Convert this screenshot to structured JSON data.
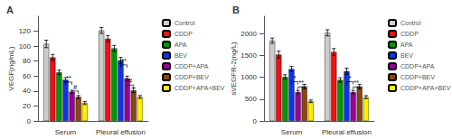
{
  "chart_data": [
    {
      "type": "bar",
      "title": "A",
      "ylabel": "VEGF(ng/mL)",
      "categories": [
        "Serum",
        "Pleural effusion"
      ],
      "series": [
        {
          "name": "Control",
          "color": "#cccccc",
          "values": [
            103,
            121
          ],
          "errors": [
            5,
            4
          ]
        },
        {
          "name": "CDDP",
          "color": "#ee1111",
          "values": [
            85,
            110
          ],
          "errors": [
            4,
            4
          ]
        },
        {
          "name": "APA",
          "color": "#009900",
          "values": [
            65,
            97
          ],
          "errors": [
            3,
            4
          ]
        },
        {
          "name": "BEV",
          "color": "#1133ee",
          "values": [
            55,
            81
          ],
          "errors": [
            3,
            4
          ]
        },
        {
          "name": "CDDP+APA",
          "color": "#990099",
          "values": [
            39,
            57
          ],
          "errors": [
            2,
            3
          ]
        },
        {
          "name": "CDDP+BEV",
          "color": "#8B4513",
          "values": [
            32,
            41
          ],
          "errors": [
            2,
            3
          ]
        },
        {
          "name": "CDDP+APA+BEV",
          "color": "#ffee00",
          "values": [
            24,
            32
          ],
          "errors": [
            2,
            2
          ]
        }
      ],
      "ylim": [
        0,
        140
      ],
      "yticks": [
        0,
        20,
        40,
        60,
        80,
        100,
        120
      ],
      "grid": false,
      "legend": "right",
      "annotations": [
        {
          "category": "Serum",
          "from": "BEV",
          "to": "CDDP+APA",
          "y": 52,
          "text": "**"
        },
        {
          "category": "Serum",
          "from": "CDDP+APA",
          "to": "CDDP+BEV",
          "y": 40,
          "text": "#"
        },
        {
          "category": "Pleural effusion",
          "from": "BEV",
          "to": "CDDP+APA",
          "y": 75,
          "text": "**"
        },
        {
          "category": "Pleural effusion",
          "from": "CDDP+APA",
          "to": "CDDP+BEV",
          "y": 48,
          "text": "#"
        }
      ]
    },
    {
      "type": "bar",
      "title": "B",
      "ylabel": "sVEGFR-2(ng/L)",
      "categories": [
        "Serum",
        "Pleural effusion"
      ],
      "series": [
        {
          "name": "Control",
          "color": "#cccccc",
          "values": [
            1840,
            2020
          ],
          "errors": [
            60,
            70
          ]
        },
        {
          "name": "CDDP",
          "color": "#ee1111",
          "values": [
            1520,
            1580
          ],
          "errors": [
            80,
            80
          ]
        },
        {
          "name": "APA",
          "color": "#009900",
          "values": [
            1010,
            940
          ],
          "errors": [
            50,
            50
          ]
        },
        {
          "name": "BEV",
          "color": "#1133ee",
          "values": [
            1190,
            1140
          ],
          "errors": [
            60,
            70
          ]
        },
        {
          "name": "CDDP+APA",
          "color": "#990099",
          "values": [
            660,
            660
          ],
          "errors": [
            40,
            40
          ]
        },
        {
          "name": "CDDP+BEV",
          "color": "#8B4513",
          "values": [
            790,
            790
          ],
          "errors": [
            50,
            50
          ]
        },
        {
          "name": "CDDP+APA+BEV",
          "color": "#ffee00",
          "values": [
            450,
            545
          ],
          "errors": [
            30,
            35
          ]
        }
      ],
      "ylim": [
        0,
        2400
      ],
      "yticks": [
        0,
        500,
        1000,
        1500,
        2000
      ],
      "grid": false,
      "legend": "right",
      "annotations": [
        {
          "category": "Serum",
          "from": "BEV",
          "to": "CDDP+APA",
          "y": 900,
          "text": "*"
        },
        {
          "category": "Serum",
          "from": "CDDP+APA",
          "to": "CDDP+BEV",
          "y": 780,
          "text": "**"
        },
        {
          "category": "Pleural effusion",
          "from": "BEV",
          "to": "CDDP+APA",
          "y": 900,
          "text": "*"
        },
        {
          "category": "Pleural effusion",
          "from": "CDDP+APA",
          "to": "CDDP+BEV",
          "y": 780,
          "text": "**"
        }
      ]
    }
  ]
}
